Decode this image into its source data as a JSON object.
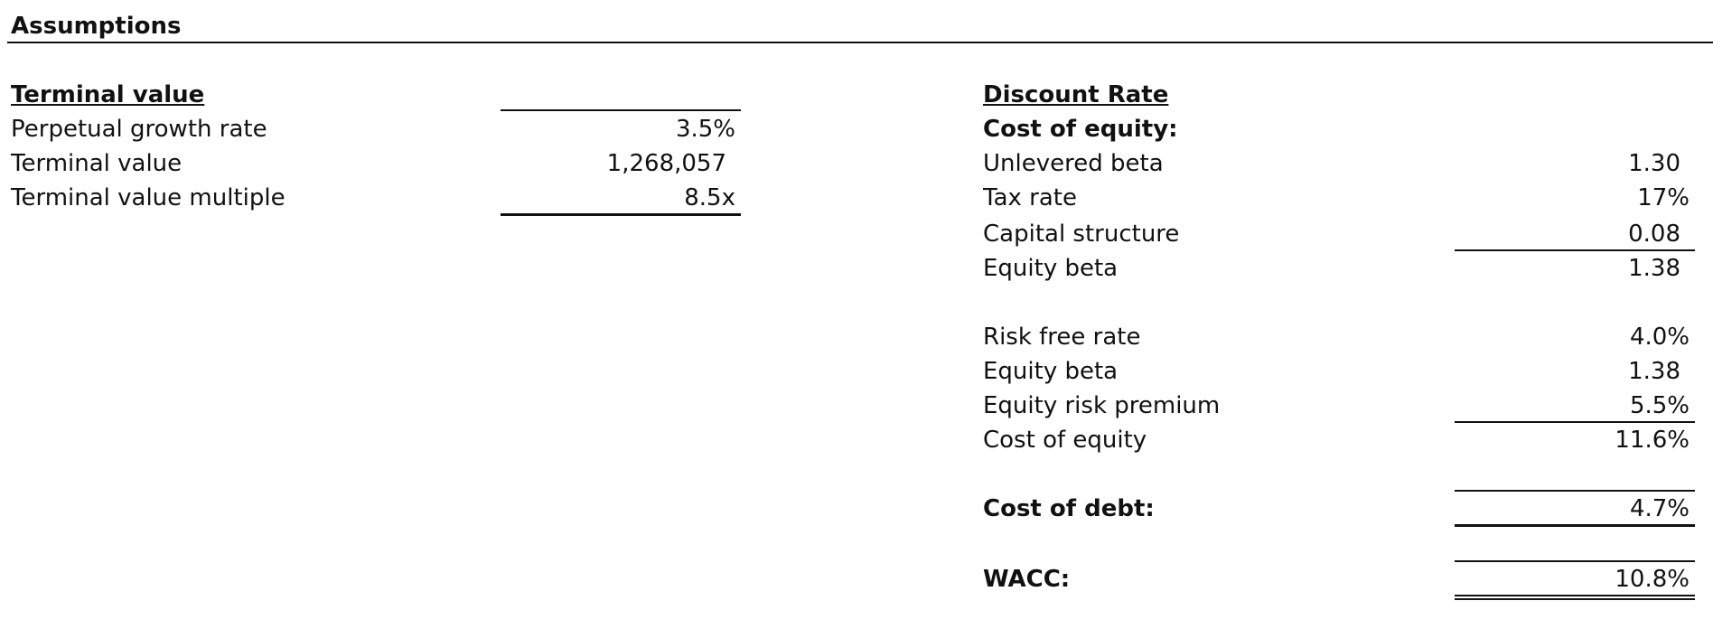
{
  "sheet": {
    "title": "Assumptions"
  },
  "terminal_value": {
    "header": "Terminal value",
    "rows": [
      {
        "label": "Perpetual growth rate",
        "value": "3.5%"
      },
      {
        "label": "Terminal value",
        "value": "1,268,057"
      },
      {
        "label": "Terminal value multiple",
        "value": "8.5x"
      }
    ]
  },
  "discount_rate": {
    "header": "Discount Rate",
    "cost_of_equity_header": "Cost of equity:",
    "beta_rows": [
      {
        "label": "Unlevered beta",
        "value": "1.30"
      },
      {
        "label": "Tax rate",
        "value": "17%"
      },
      {
        "label": "Capital structure",
        "value": "0.08"
      },
      {
        "label": "Equity beta",
        "value": "1.38"
      }
    ],
    "capm_rows": [
      {
        "label": "Risk free rate",
        "value": "4.0%"
      },
      {
        "label": "Equity beta",
        "value": "1.38"
      },
      {
        "label": "Equity risk premium",
        "value": "5.5%"
      },
      {
        "label": "Cost of equity",
        "value": "11.6%"
      }
    ],
    "cost_of_debt": {
      "label": "Cost of debt:",
      "value": "4.7%"
    },
    "wacc": {
      "label": "WACC:",
      "value": "10.8%"
    }
  }
}
